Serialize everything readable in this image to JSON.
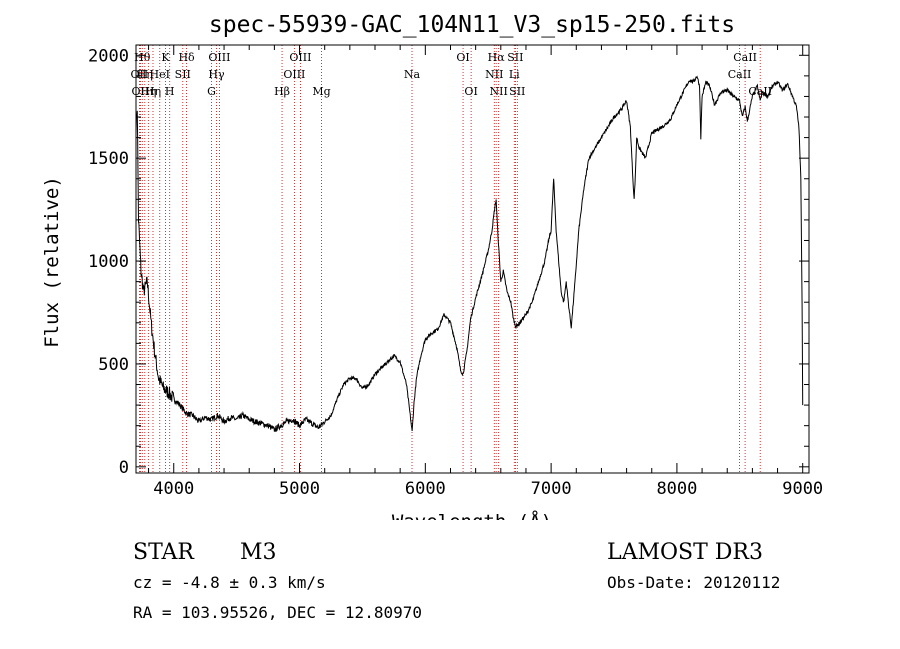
{
  "chart_data": {
    "type": "line",
    "title": "spec-55939-GAC_104N11_V3_sp15-250.fits",
    "xlabel": "Wavelength (Å)",
    "ylabel": "Flux (relative)",
    "xlim": [
      3700,
      9050
    ],
    "ylim": [
      -30,
      2050
    ],
    "x_ticks": [
      4000,
      5000,
      6000,
      7000,
      8000,
      9000
    ],
    "x_tick_labels": [
      "4000",
      "5000",
      "6000",
      "7000",
      "8000",
      "9000"
    ],
    "y_ticks": [
      0,
      500,
      1000,
      1500,
      2000
    ],
    "y_tick_labels": [
      "0",
      "500",
      "1000",
      "1500",
      "2000"
    ],
    "grid": false,
    "series": [
      {
        "name": "spectrum",
        "x": [
          3700,
          3710,
          3720,
          3740,
          3760,
          3790,
          3820,
          3850,
          3880,
          3920,
          3960,
          4000,
          4050,
          4100,
          4150,
          4200,
          4250,
          4300,
          4350,
          4400,
          4450,
          4500,
          4550,
          4600,
          4650,
          4700,
          4750,
          4800,
          4850,
          4900,
          4950,
          5000,
          5050,
          5100,
          5150,
          5200,
          5250,
          5300,
          5350,
          5400,
          5450,
          5500,
          5550,
          5600,
          5650,
          5700,
          5750,
          5800,
          5850,
          5880,
          5895,
          5910,
          5930,
          5960,
          6000,
          6050,
          6100,
          6150,
          6200,
          6250,
          6280,
          6300,
          6330,
          6360,
          6400,
          6450,
          6500,
          6530,
          6550,
          6563,
          6575,
          6600,
          6620,
          6650,
          6680,
          6700,
          6720,
          6750,
          6800,
          6850,
          6900,
          6950,
          6980,
          7000,
          7020,
          7040,
          7060,
          7080,
          7100,
          7120,
          7140,
          7160,
          7170,
          7190,
          7220,
          7260,
          7300,
          7350,
          7400,
          7450,
          7500,
          7550,
          7580,
          7600,
          7630,
          7650,
          7660,
          7670,
          7680,
          7700,
          7750,
          7800,
          7850,
          7900,
          7950,
          8000,
          8050,
          8100,
          8130,
          8160,
          8180,
          8190,
          8200,
          8230,
          8260,
          8300,
          8350,
          8400,
          8450,
          8498,
          8520,
          8542,
          8560,
          8600,
          8640,
          8662,
          8680,
          8720,
          8760,
          8800,
          8840,
          8880,
          8920,
          8950,
          8970,
          8985,
          8995,
          9000
        ],
        "y": [
          1650,
          1750,
          1200,
          950,
          850,
          900,
          700,
          550,
          430,
          380,
          360,
          330,
          300,
          260,
          250,
          220,
          240,
          230,
          250,
          220,
          240,
          230,
          250,
          230,
          220,
          210,
          200,
          180,
          200,
          220,
          230,
          200,
          230,
          210,
          190,
          220,
          250,
          330,
          400,
          430,
          430,
          380,
          400,
          450,
          480,
          510,
          540,
          510,
          400,
          250,
          170,
          310,
          430,
          530,
          620,
          650,
          670,
          740,
          700,
          580,
          470,
          450,
          560,
          720,
          820,
          930,
          1050,
          1150,
          1250,
          1300,
          1150,
          900,
          950,
          850,
          800,
          720,
          680,
          700,
          740,
          800,
          900,
          1000,
          1100,
          1150,
          1400,
          1150,
          1000,
          850,
          800,
          900,
          780,
          680,
          750,
          900,
          1150,
          1350,
          1500,
          1550,
          1600,
          1650,
          1700,
          1730,
          1760,
          1780,
          1650,
          1400,
          1300,
          1420,
          1600,
          1550,
          1500,
          1620,
          1640,
          1660,
          1690,
          1760,
          1820,
          1880,
          1870,
          1900,
          1850,
          1600,
          1800,
          1870,
          1850,
          1760,
          1820,
          1830,
          1800,
          1780,
          1700,
          1750,
          1680,
          1800,
          1850,
          1780,
          1820,
          1800,
          1850,
          1870,
          1830,
          1860,
          1800,
          1750,
          1650,
          1400,
          800,
          300
        ]
      }
    ],
    "line_marks": [
      {
        "wave": 3727,
        "label": "OII",
        "row": 2
      },
      {
        "wave": 3735,
        "label": "OII",
        "row": 3
      },
      {
        "wave": 3750,
        "label": "Hθ",
        "row": 1
      },
      {
        "wave": 3770,
        "label": "Hη",
        "row": 2
      },
      {
        "wave": 3798,
        "label": "Hη",
        "row": 3
      },
      {
        "wave": 3835,
        "label": "Hη",
        "row": 3
      },
      {
        "wave": 3889,
        "label": "HeI",
        "row": 2
      },
      {
        "wave": 3934,
        "label": "K",
        "row": 1
      },
      {
        "wave": 3968,
        "label": "H",
        "row": 3
      },
      {
        "wave": 4072,
        "label": "SII",
        "row": 2
      },
      {
        "wave": 4102,
        "label": "Hδ",
        "row": 1
      },
      {
        "wave": 4300,
        "label": "G",
        "row": 3
      },
      {
        "wave": 4340,
        "label": "Hγ",
        "row": 2
      },
      {
        "wave": 4363,
        "label": "OIII",
        "row": 1
      },
      {
        "wave": 4861,
        "label": "Hβ",
        "row": 3
      },
      {
        "wave": 4959,
        "label": "OIII",
        "row": 2
      },
      {
        "wave": 5007,
        "label": "OIII",
        "row": 1
      },
      {
        "wave": 5175,
        "label": "Mg",
        "row": 3
      },
      {
        "wave": 5894,
        "label": "Na",
        "row": 2
      },
      {
        "wave": 6300,
        "label": "OI",
        "row": 1
      },
      {
        "wave": 6364,
        "label": "OI",
        "row": 3
      },
      {
        "wave": 6548,
        "label": "NII",
        "row": 2
      },
      {
        "wave": 6563,
        "label": "Hα",
        "row": 1
      },
      {
        "wave": 6583,
        "label": "NII",
        "row": 3
      },
      {
        "wave": 6707,
        "label": "Li",
        "row": 2
      },
      {
        "wave": 6716,
        "label": "SII",
        "row": 1
      },
      {
        "wave": 6731,
        "label": "SII",
        "row": 3
      },
      {
        "wave": 8498,
        "label": "CaII",
        "row": 2
      },
      {
        "wave": 8542,
        "label": "CaII",
        "row": 1
      },
      {
        "wave": 8662,
        "label": "CaII",
        "row": 3
      }
    ]
  },
  "info": {
    "class": "STAR",
    "subclass": "M3",
    "survey": "LAMOST DR3",
    "cz": "cz = -4.8 ± 0.3 km/s",
    "obs_date": "Obs-Date: 20120112",
    "radec": "RA = 103.95526, DEC =  12.80970"
  },
  "colors": {
    "axis": "#000000",
    "spectrum": "#000000",
    "line_marker": "#cc0000"
  }
}
